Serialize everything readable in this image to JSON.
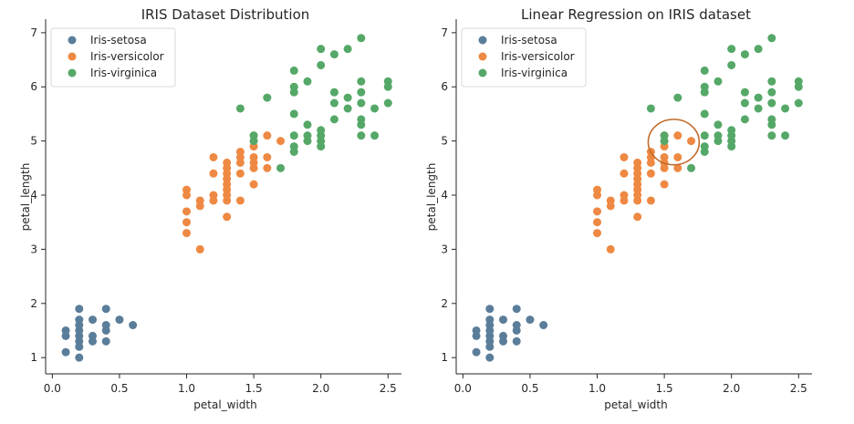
{
  "chart_data": [
    {
      "type": "scatter",
      "title": "IRIS Dataset Distribution",
      "xlabel": "petal_width",
      "ylabel": "petal_length",
      "xlim": [
        -0.05,
        2.6
      ],
      "ylim": [
        0.7,
        7.25
      ],
      "xticks": [
        "0.0",
        "0.5",
        "1.0",
        "1.5",
        "2.0",
        "2.5"
      ],
      "yticks": [
        "1",
        "2",
        "3",
        "4",
        "5",
        "6",
        "7"
      ],
      "grid": false,
      "legend_position": "top-left",
      "series": [
        {
          "name": "Iris-setosa",
          "color": "#5a7d9a",
          "points": [
            [
              0.1,
              1.1
            ],
            [
              0.1,
              1.4
            ],
            [
              0.1,
              1.5
            ],
            [
              0.2,
              1.0
            ],
            [
              0.2,
              1.2
            ],
            [
              0.2,
              1.3
            ],
            [
              0.2,
              1.4
            ],
            [
              0.2,
              1.5
            ],
            [
              0.2,
              1.6
            ],
            [
              0.2,
              1.7
            ],
            [
              0.2,
              1.9
            ],
            [
              0.3,
              1.3
            ],
            [
              0.3,
              1.4
            ],
            [
              0.3,
              1.7
            ],
            [
              0.4,
              1.3
            ],
            [
              0.4,
              1.5
            ],
            [
              0.4,
              1.6
            ],
            [
              0.4,
              1.9
            ],
            [
              0.5,
              1.7
            ],
            [
              0.6,
              1.6
            ]
          ]
        },
        {
          "name": "Iris-versicolor",
          "color": "#ee8943",
          "points": [
            [
              1.0,
              3.3
            ],
            [
              1.0,
              3.5
            ],
            [
              1.0,
              3.7
            ],
            [
              1.0,
              4.0
            ],
            [
              1.0,
              4.1
            ],
            [
              1.1,
              3.0
            ],
            [
              1.1,
              3.8
            ],
            [
              1.1,
              3.9
            ],
            [
              1.2,
              3.9
            ],
            [
              1.2,
              4.0
            ],
            [
              1.2,
              4.4
            ],
            [
              1.2,
              4.7
            ],
            [
              1.3,
              3.6
            ],
            [
              1.3,
              3.9
            ],
            [
              1.3,
              4.0
            ],
            [
              1.3,
              4.1
            ],
            [
              1.3,
              4.2
            ],
            [
              1.3,
              4.3
            ],
            [
              1.3,
              4.4
            ],
            [
              1.3,
              4.5
            ],
            [
              1.3,
              4.6
            ],
            [
              1.4,
              3.9
            ],
            [
              1.4,
              4.4
            ],
            [
              1.4,
              4.6
            ],
            [
              1.4,
              4.7
            ],
            [
              1.4,
              4.8
            ],
            [
              1.5,
              4.2
            ],
            [
              1.5,
              4.5
            ],
            [
              1.5,
              4.6
            ],
            [
              1.5,
              4.7
            ],
            [
              1.5,
              4.9
            ],
            [
              1.5,
              5.1
            ],
            [
              1.6,
              4.5
            ],
            [
              1.6,
              4.7
            ],
            [
              1.6,
              5.1
            ],
            [
              1.7,
              5.0
            ]
          ]
        },
        {
          "name": "Iris-virginica",
          "color": "#55a868",
          "points": [
            [
              1.4,
              5.6
            ],
            [
              1.5,
              5.0
            ],
            [
              1.5,
              5.1
            ],
            [
              1.6,
              5.8
            ],
            [
              1.7,
              4.5
            ],
            [
              1.8,
              4.8
            ],
            [
              1.8,
              4.9
            ],
            [
              1.8,
              5.1
            ],
            [
              1.8,
              5.5
            ],
            [
              1.8,
              5.9
            ],
            [
              1.8,
              6.0
            ],
            [
              1.8,
              6.3
            ],
            [
              1.9,
              5.0
            ],
            [
              1.9,
              5.1
            ],
            [
              1.9,
              5.3
            ],
            [
              1.9,
              6.1
            ],
            [
              2.0,
              4.9
            ],
            [
              2.0,
              5.0
            ],
            [
              2.0,
              5.1
            ],
            [
              2.0,
              5.2
            ],
            [
              2.0,
              6.4
            ],
            [
              2.0,
              6.7
            ],
            [
              2.1,
              5.4
            ],
            [
              2.1,
              5.7
            ],
            [
              2.1,
              5.9
            ],
            [
              2.1,
              6.6
            ],
            [
              2.2,
              5.6
            ],
            [
              2.2,
              5.8
            ],
            [
              2.2,
              6.7
            ],
            [
              2.3,
              5.1
            ],
            [
              2.3,
              5.3
            ],
            [
              2.3,
              5.4
            ],
            [
              2.3,
              5.7
            ],
            [
              2.3,
              5.9
            ],
            [
              2.3,
              6.1
            ],
            [
              2.3,
              6.9
            ],
            [
              2.4,
              5.1
            ],
            [
              2.4,
              5.6
            ],
            [
              2.5,
              5.7
            ],
            [
              2.5,
              6.0
            ],
            [
              2.5,
              6.1
            ]
          ]
        }
      ]
    },
    {
      "type": "scatter",
      "title": "Linear Regression on IRIS dataset",
      "xlabel": "petal_width",
      "ylabel": "petal_length",
      "xlim": [
        -0.05,
        2.6
      ],
      "ylim": [
        0.7,
        7.25
      ],
      "xticks": [
        "0.0",
        "0.5",
        "1.0",
        "1.5",
        "2.0",
        "2.5"
      ],
      "yticks": [
        "1",
        "2",
        "3",
        "4",
        "5",
        "6",
        "7"
      ],
      "grid": false,
      "legend_position": "top-left",
      "annotation": {
        "shape": "ellipse",
        "center": [
          1.57,
          4.98
        ],
        "rx_data": 0.19,
        "ry_data": 0.42,
        "color": "#c06a2b"
      },
      "series": [
        {
          "name": "Iris-setosa",
          "color": "#5a7d9a",
          "points": [
            [
              0.1,
              1.1
            ],
            [
              0.1,
              1.4
            ],
            [
              0.1,
              1.5
            ],
            [
              0.2,
              1.0
            ],
            [
              0.2,
              1.2
            ],
            [
              0.2,
              1.3
            ],
            [
              0.2,
              1.4
            ],
            [
              0.2,
              1.5
            ],
            [
              0.2,
              1.6
            ],
            [
              0.2,
              1.7
            ],
            [
              0.2,
              1.9
            ],
            [
              0.3,
              1.3
            ],
            [
              0.3,
              1.4
            ],
            [
              0.3,
              1.7
            ],
            [
              0.4,
              1.3
            ],
            [
              0.4,
              1.5
            ],
            [
              0.4,
              1.6
            ],
            [
              0.4,
              1.9
            ],
            [
              0.5,
              1.7
            ],
            [
              0.6,
              1.6
            ]
          ]
        },
        {
          "name": "Iris-versicolor",
          "color": "#ee8943",
          "points": [
            [
              1.0,
              3.3
            ],
            [
              1.0,
              3.5
            ],
            [
              1.0,
              3.7
            ],
            [
              1.0,
              4.0
            ],
            [
              1.0,
              4.1
            ],
            [
              1.1,
              3.0
            ],
            [
              1.1,
              3.8
            ],
            [
              1.1,
              3.9
            ],
            [
              1.2,
              3.9
            ],
            [
              1.2,
              4.0
            ],
            [
              1.2,
              4.4
            ],
            [
              1.2,
              4.7
            ],
            [
              1.3,
              3.6
            ],
            [
              1.3,
              3.9
            ],
            [
              1.3,
              4.0
            ],
            [
              1.3,
              4.1
            ],
            [
              1.3,
              4.2
            ],
            [
              1.3,
              4.3
            ],
            [
              1.3,
              4.4
            ],
            [
              1.3,
              4.5
            ],
            [
              1.3,
              4.6
            ],
            [
              1.4,
              3.9
            ],
            [
              1.4,
              4.4
            ],
            [
              1.4,
              4.6
            ],
            [
              1.4,
              4.7
            ],
            [
              1.4,
              4.8
            ],
            [
              1.5,
              4.2
            ],
            [
              1.5,
              4.5
            ],
            [
              1.5,
              4.6
            ],
            [
              1.5,
              4.7
            ],
            [
              1.5,
              4.9
            ],
            [
              1.5,
              5.1
            ],
            [
              1.6,
              4.5
            ],
            [
              1.6,
              4.7
            ],
            [
              1.6,
              5.1
            ],
            [
              1.7,
              5.0
            ]
          ]
        },
        {
          "name": "Iris-virginica",
          "color": "#55a868",
          "points": [
            [
              1.4,
              5.6
            ],
            [
              1.5,
              5.0
            ],
            [
              1.5,
              5.1
            ],
            [
              1.6,
              5.8
            ],
            [
              1.7,
              4.5
            ],
            [
              1.8,
              4.8
            ],
            [
              1.8,
              4.9
            ],
            [
              1.8,
              5.1
            ],
            [
              1.8,
              5.5
            ],
            [
              1.8,
              5.9
            ],
            [
              1.8,
              6.0
            ],
            [
              1.8,
              6.3
            ],
            [
              1.9,
              5.0
            ],
            [
              1.9,
              5.1
            ],
            [
              1.9,
              5.3
            ],
            [
              1.9,
              6.1
            ],
            [
              2.0,
              4.9
            ],
            [
              2.0,
              5.0
            ],
            [
              2.0,
              5.1
            ],
            [
              2.0,
              5.2
            ],
            [
              2.0,
              6.4
            ],
            [
              2.0,
              6.7
            ],
            [
              2.1,
              5.4
            ],
            [
              2.1,
              5.7
            ],
            [
              2.1,
              5.9
            ],
            [
              2.1,
              6.6
            ],
            [
              2.2,
              5.6
            ],
            [
              2.2,
              5.8
            ],
            [
              2.2,
              6.7
            ],
            [
              2.3,
              5.1
            ],
            [
              2.3,
              5.3
            ],
            [
              2.3,
              5.4
            ],
            [
              2.3,
              5.7
            ],
            [
              2.3,
              5.9
            ],
            [
              2.3,
              6.1
            ],
            [
              2.3,
              6.9
            ],
            [
              2.4,
              5.1
            ],
            [
              2.4,
              5.6
            ],
            [
              2.5,
              5.7
            ],
            [
              2.5,
              6.0
            ],
            [
              2.5,
              6.1
            ]
          ]
        }
      ]
    }
  ]
}
